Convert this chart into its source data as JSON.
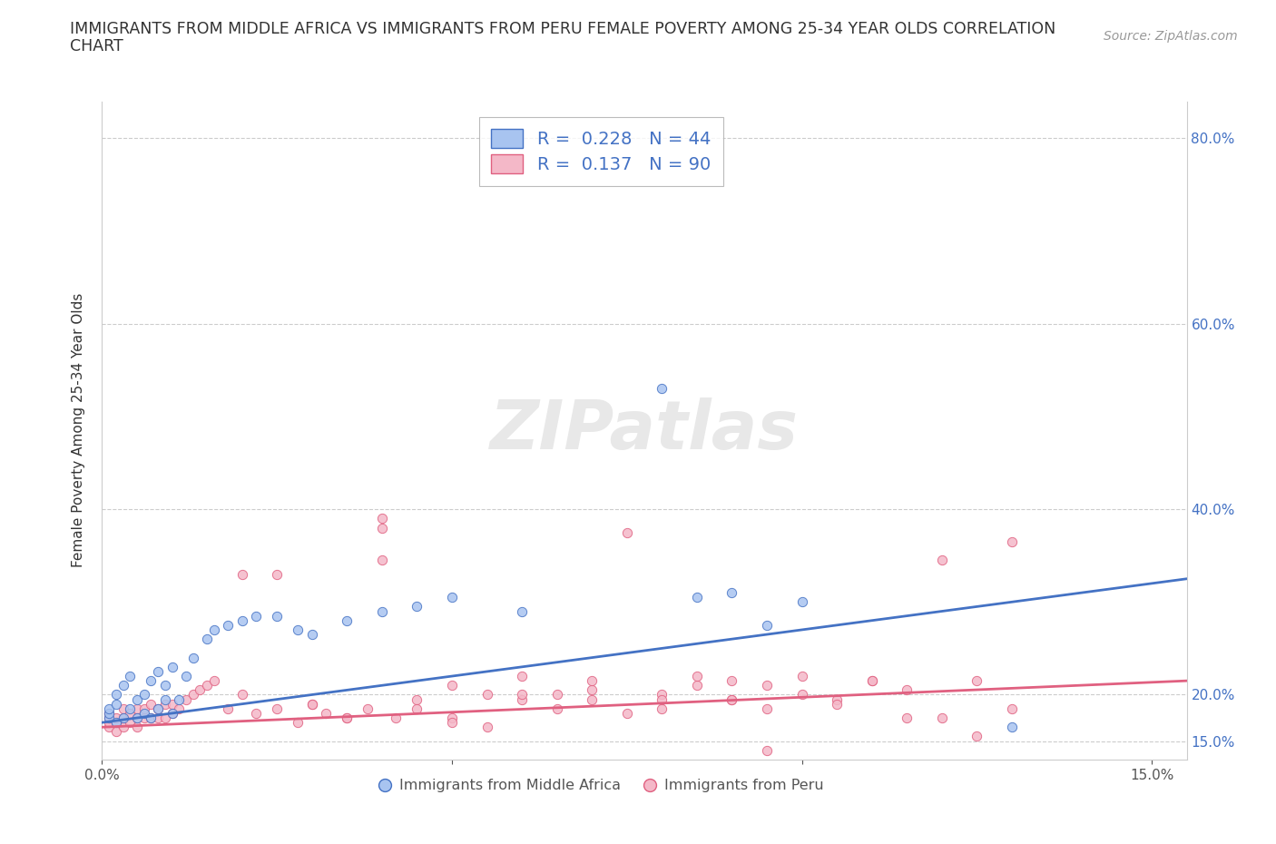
{
  "title_line1": "IMMIGRANTS FROM MIDDLE AFRICA VS IMMIGRANTS FROM PERU FEMALE POVERTY AMONG 25-34 YEAR OLDS CORRELATION",
  "title_line2": "CHART",
  "source": "Source: ZipAtlas.com",
  "ylabel": "Female Poverty Among 25-34 Year Olds",
  "xlim": [
    0.0,
    0.155
  ],
  "ylim": [
    0.13,
    0.84
  ],
  "xticks": [
    0.0,
    0.05,
    0.1,
    0.15
  ],
  "xtick_labels": [
    "0.0%",
    "",
    "",
    "15.0%"
  ],
  "yticks": [
    0.15,
    0.2,
    0.4,
    0.6,
    0.8
  ],
  "ytick_labels_right": [
    "15.0%",
    "20.0%",
    "40.0%",
    "60.0%",
    "80.0%"
  ],
  "legend_r_blue": "0.228",
  "legend_n_blue": "44",
  "legend_r_pink": "0.137",
  "legend_n_pink": "90",
  "blue_fill": "#a8c4f0",
  "pink_fill": "#f4b8c8",
  "blue_edge": "#4472c4",
  "pink_edge": "#e06080",
  "blue_line": "#4472c4",
  "pink_line": "#e06080",
  "watermark": "ZIPatlas",
  "legend1_label": "Immigrants from Middle Africa",
  "legend2_label": "Immigrants from Peru",
  "blue_scatter_x": [
    0.001,
    0.001,
    0.001,
    0.002,
    0.002,
    0.002,
    0.003,
    0.003,
    0.004,
    0.004,
    0.005,
    0.005,
    0.006,
    0.006,
    0.007,
    0.007,
    0.008,
    0.008,
    0.009,
    0.009,
    0.01,
    0.01,
    0.011,
    0.012,
    0.013,
    0.015,
    0.016,
    0.018,
    0.02,
    0.022,
    0.025,
    0.028,
    0.03,
    0.035,
    0.04,
    0.045,
    0.05,
    0.06,
    0.08,
    0.085,
    0.09,
    0.095,
    0.1,
    0.13
  ],
  "blue_scatter_y": [
    0.175,
    0.18,
    0.185,
    0.17,
    0.19,
    0.2,
    0.175,
    0.21,
    0.185,
    0.22,
    0.175,
    0.195,
    0.18,
    0.2,
    0.175,
    0.215,
    0.185,
    0.225,
    0.195,
    0.21,
    0.18,
    0.23,
    0.195,
    0.22,
    0.24,
    0.26,
    0.27,
    0.275,
    0.28,
    0.285,
    0.285,
    0.27,
    0.265,
    0.28,
    0.29,
    0.295,
    0.305,
    0.29,
    0.53,
    0.305,
    0.31,
    0.275,
    0.3,
    0.165
  ],
  "pink_scatter_x": [
    0.001,
    0.001,
    0.001,
    0.001,
    0.002,
    0.002,
    0.002,
    0.003,
    0.003,
    0.003,
    0.004,
    0.004,
    0.005,
    0.005,
    0.005,
    0.006,
    0.006,
    0.007,
    0.007,
    0.008,
    0.008,
    0.009,
    0.009,
    0.01,
    0.01,
    0.011,
    0.012,
    0.013,
    0.014,
    0.015,
    0.016,
    0.018,
    0.02,
    0.022,
    0.025,
    0.028,
    0.03,
    0.032,
    0.035,
    0.038,
    0.04,
    0.042,
    0.045,
    0.05,
    0.055,
    0.06,
    0.065,
    0.07,
    0.075,
    0.08,
    0.085,
    0.09,
    0.095,
    0.1,
    0.105,
    0.11,
    0.115,
    0.12,
    0.125,
    0.13,
    0.02,
    0.025,
    0.03,
    0.035,
    0.04,
    0.045,
    0.05,
    0.06,
    0.07,
    0.08,
    0.09,
    0.095,
    0.1,
    0.105,
    0.11,
    0.115,
    0.12,
    0.125,
    0.04,
    0.05,
    0.055,
    0.06,
    0.065,
    0.07,
    0.075,
    0.08,
    0.085,
    0.09,
    0.095,
    0.13
  ],
  "pink_scatter_y": [
    0.165,
    0.17,
    0.175,
    0.18,
    0.16,
    0.17,
    0.175,
    0.165,
    0.175,
    0.185,
    0.17,
    0.18,
    0.165,
    0.175,
    0.185,
    0.175,
    0.185,
    0.175,
    0.19,
    0.175,
    0.185,
    0.175,
    0.19,
    0.18,
    0.19,
    0.185,
    0.195,
    0.2,
    0.205,
    0.21,
    0.215,
    0.185,
    0.2,
    0.18,
    0.185,
    0.17,
    0.19,
    0.18,
    0.175,
    0.185,
    0.38,
    0.175,
    0.195,
    0.175,
    0.2,
    0.195,
    0.2,
    0.205,
    0.18,
    0.2,
    0.21,
    0.195,
    0.185,
    0.22,
    0.195,
    0.215,
    0.205,
    0.175,
    0.215,
    0.365,
    0.33,
    0.33,
    0.19,
    0.175,
    0.345,
    0.185,
    0.21,
    0.2,
    0.215,
    0.185,
    0.195,
    0.21,
    0.2,
    0.19,
    0.215,
    0.175,
    0.345,
    0.155,
    0.39,
    0.17,
    0.165,
    0.22,
    0.185,
    0.195,
    0.375,
    0.195,
    0.22,
    0.215,
    0.14,
    0.185
  ]
}
